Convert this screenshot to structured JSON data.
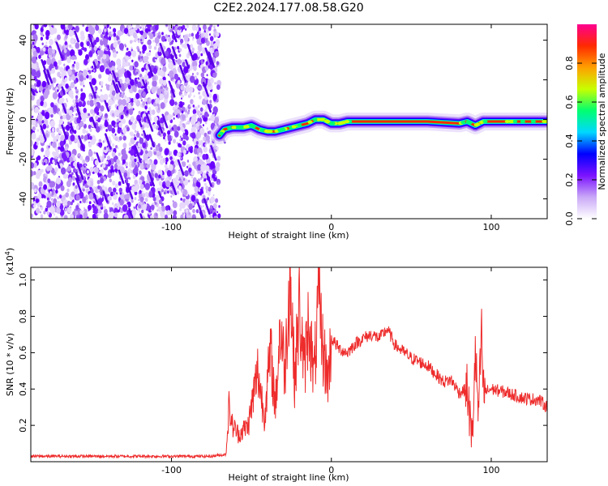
{
  "chart_data": [
    {
      "type": "heatmap",
      "title": "C2E2.2024.177.08.58.G20",
      "xlabel": "Height of straight line (km)",
      "ylabel": "Frequency (Hz)",
      "xlim": [
        -188,
        135
      ],
      "ylim": [
        -50,
        48
      ],
      "xticks": [
        -100,
        0,
        100
      ],
      "yticks": [
        -40,
        -20,
        0,
        20,
        40
      ],
      "colorbar": {
        "label": "Normalized spectral amplitude",
        "range": [
          0,
          1
        ],
        "ticks": [
          "0.0",
          "0.2",
          "0.4",
          "0.6",
          "0.8"
        ],
        "colors": [
          "#ffffff",
          "#c9a8f7",
          "#7b12ff",
          "#0000ff",
          "#00d8ff",
          "#00ff70",
          "#c8ff00",
          "#ffa000",
          "#ff2a00",
          "#ff0090"
        ]
      },
      "noise_region_x": [
        -188,
        -70
      ],
      "signal_track": {
        "x": [
          -70,
          -67,
          -62,
          -55,
          -50,
          -45,
          -40,
          -35,
          -30,
          -25,
          -20,
          -15,
          -10,
          -5,
          0,
          5,
          10,
          20,
          40,
          60,
          80,
          85,
          90,
          95,
          100,
          110,
          120,
          135
        ],
        "y": [
          -8,
          -5,
          -4,
          -4,
          -3,
          -5,
          -6,
          -6,
          -5,
          -4,
          -3,
          -2,
          0,
          0,
          -2,
          -2,
          -1,
          -1,
          -1,
          -1,
          -2,
          -1,
          -3,
          -1,
          -1,
          -1,
          -1,
          -1
        ]
      }
    },
    {
      "type": "line",
      "xlabel": "Height of straight line (km)",
      "ylabel": "SNR (10 * v/v)",
      "scale_note": "(x10",
      "scale_exp": "4",
      "xlim": [
        -188,
        135
      ],
      "ylim": [
        0,
        1.07
      ],
      "xticks": [
        -100,
        0,
        100
      ],
      "yticks": [
        0.2,
        0.4,
        0.6,
        0.8,
        1.0
      ],
      "color": "#ee2b2b",
      "series": [
        {
          "x": [
            -188,
            -160,
            -130,
            -100,
            -75,
            -66,
            -64,
            -62,
            -58,
            -52,
            -46,
            -42,
            -38,
            -35,
            -32,
            -29,
            -26,
            -23,
            -20,
            -17,
            -14,
            -11,
            -8,
            -5,
            -2,
            0,
            5,
            10,
            15,
            20,
            25,
            30,
            35,
            40,
            50,
            60,
            70,
            75,
            80,
            85,
            88,
            90,
            92,
            94,
            95,
            100,
            110,
            120,
            130,
            135
          ],
          "y": [
            0.03,
            0.03,
            0.03,
            0.03,
            0.03,
            0.04,
            0.3,
            0.2,
            0.15,
            0.2,
            0.5,
            0.25,
            0.6,
            0.3,
            0.75,
            0.5,
            1.06,
            0.45,
            0.85,
            0.5,
            0.8,
            0.45,
            0.88,
            0.6,
            0.45,
            0.68,
            0.62,
            0.6,
            0.65,
            0.68,
            0.7,
            0.68,
            0.73,
            0.64,
            0.57,
            0.53,
            0.44,
            0.45,
            0.38,
            0.4,
            0.1,
            0.6,
            0.25,
            0.72,
            0.38,
            0.4,
            0.38,
            0.35,
            0.34,
            0.3
          ]
        }
      ]
    }
  ]
}
